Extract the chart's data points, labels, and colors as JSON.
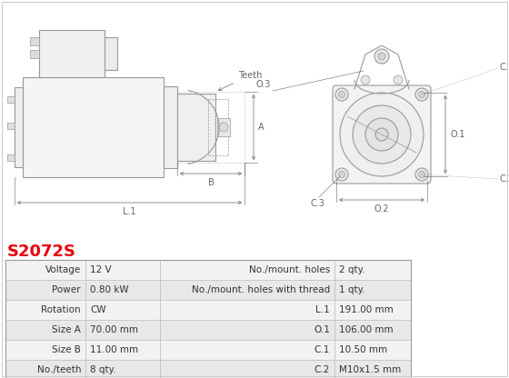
{
  "title": "S2072S",
  "title_color": "#e8000d",
  "bg_color": "#ffffff",
  "table_row_bg1": "#f2f2f2",
  "table_row_bg2": "#e8e8e8",
  "table_data": [
    [
      "Voltage",
      "12 V",
      "No./mount. holes",
      "2 qty."
    ],
    [
      "Power",
      "0.80 kW",
      "No./mount. holes with thread",
      "1 qty."
    ],
    [
      "Rotation",
      "CW",
      "L.1",
      "191.00 mm"
    ],
    [
      "Size A",
      "70.00 mm",
      "O.1",
      "106.00 mm"
    ],
    [
      "Size B",
      "11.00 mm",
      "C.1",
      "10.50 mm"
    ],
    [
      "No./teeth",
      "8 qty.",
      "C.2",
      "M10x1.5 mm"
    ]
  ]
}
